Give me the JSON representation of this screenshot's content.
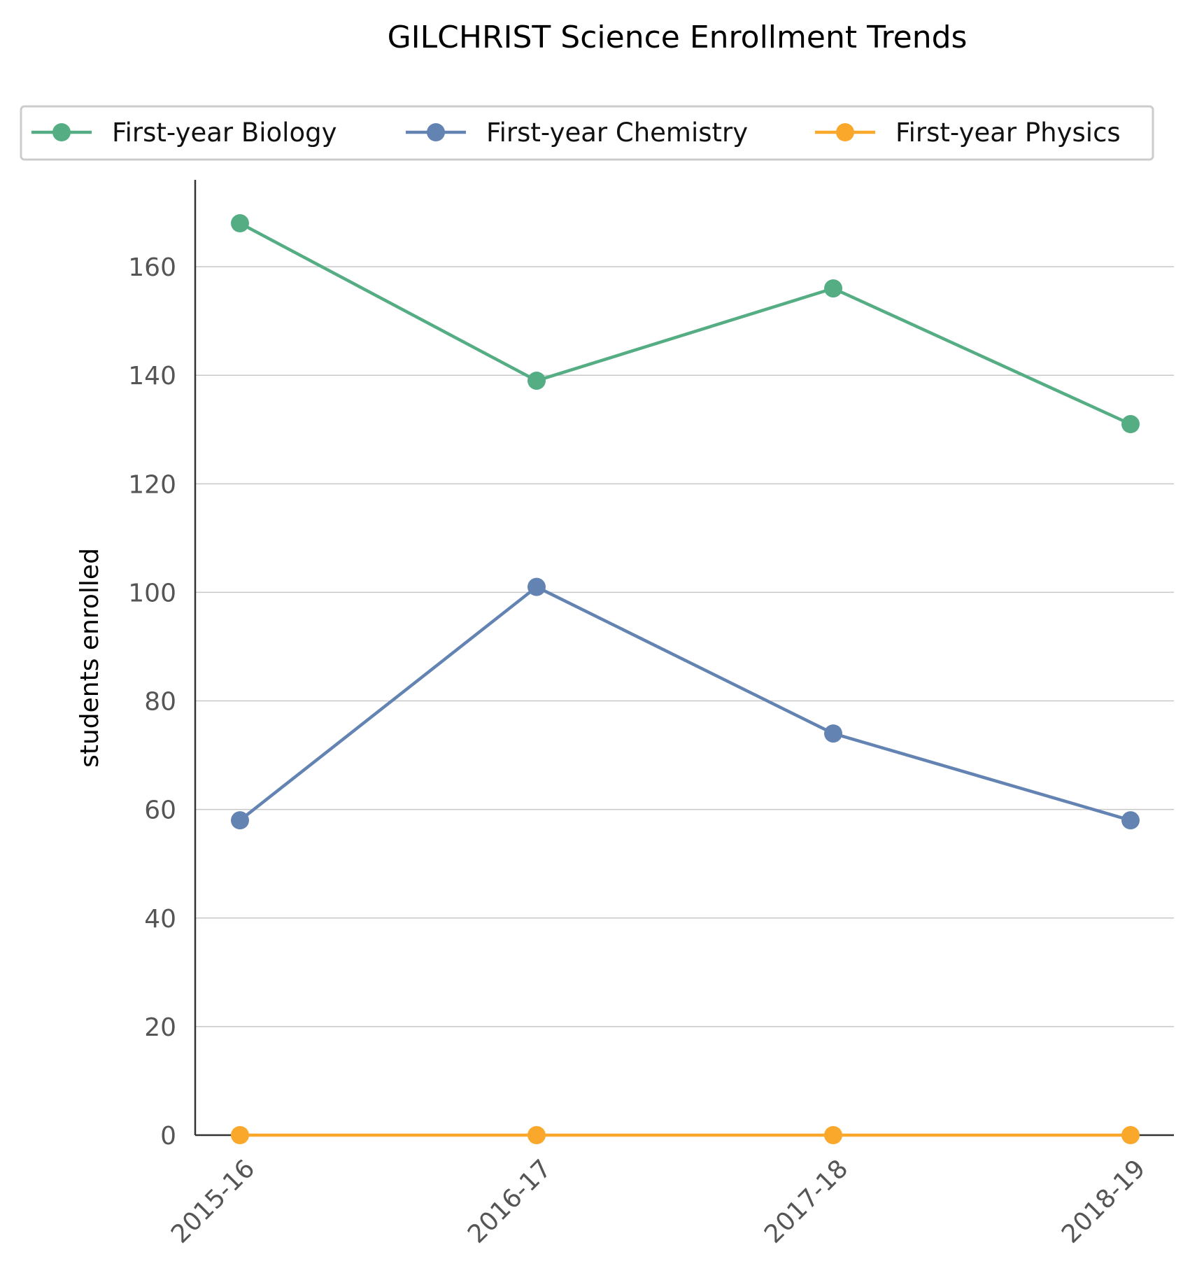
{
  "chart_data": {
    "type": "line",
    "title": "GILCHRIST Science Enrollment Trends",
    "xlabel": "",
    "ylabel": "students enrolled",
    "categories": [
      "2015-16",
      "2016-17",
      "2017-18",
      "2018-19"
    ],
    "series": [
      {
        "name": "First-year Biology",
        "values": [
          168,
          139,
          156,
          131
        ],
        "color": "#55ad84"
      },
      {
        "name": "First-year Chemistry",
        "values": [
          58,
          101,
          74,
          58
        ],
        "color": "#6383b3"
      },
      {
        "name": "First-year Physics",
        "values": [
          0,
          0,
          0,
          0
        ],
        "color": "#f9a82c"
      }
    ],
    "ylim": [
      0,
      176
    ],
    "yticks": [
      0,
      20,
      40,
      60,
      80,
      100,
      120,
      140,
      160
    ],
    "grid": "horizontal",
    "legend_position": "top"
  }
}
